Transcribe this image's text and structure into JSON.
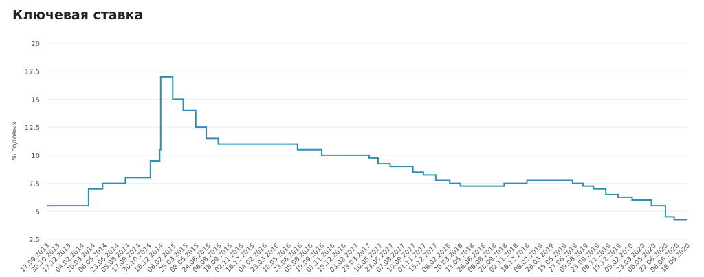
{
  "chart_data": {
    "type": "step-line",
    "title": "Ключевая ставка",
    "y_label": "% годовых",
    "x": [
      "17.09.2013",
      "03.03.2014",
      "28.04.2014",
      "28.07.2014",
      "05.11.2014",
      "12.12.2014",
      "16.12.2014",
      "02.02.2015",
      "16.03.2015",
      "05.05.2015",
      "16.06.2015",
      "03.08.2015",
      "14.06.2016",
      "19.09.2016",
      "27.03.2017",
      "02.05.2017",
      "19.06.2017",
      "18.09.2017",
      "30.10.2017",
      "18.12.2017",
      "12.02.2018",
      "26.03.2018",
      "17.09.2018",
      "17.12.2018",
      "17.06.2019",
      "29.07.2019",
      "09.09.2019",
      "28.10.2019",
      "16.12.2019",
      "10.02.2020",
      "27.04.2020",
      "22.06.2020",
      "27.07.2020",
      "18.09.2020"
    ],
    "values": [
      5.5,
      7,
      7.5,
      8,
      9.5,
      10.5,
      17,
      15,
      14,
      12.5,
      11.5,
      11,
      10.5,
      10,
      9.75,
      9.25,
      9,
      8.5,
      8.25,
      7.75,
      7.5,
      7.25,
      7.5,
      7.75,
      7.5,
      7.25,
      7,
      6.5,
      6.25,
      6,
      5.5,
      4.5,
      4.25,
      4.25
    ],
    "color": "#2b8fb3",
    "xlim": [
      "17.09.2013",
      "18.09.2020"
    ],
    "xticks": [
      "17.09.2013",
      "30.10.2013",
      "13.12.2013",
      "04.02.2014",
      "20.03.2014",
      "06.05.2014",
      "23.06.2014",
      "05.08.2014",
      "17.09.2014",
      "30.10.2014",
      "16.12.2014",
      "06.02.2015",
      "25.03.2015",
      "08.05.2015",
      "24.06.2015",
      "06.08.2015",
      "18.09.2015",
      "02.11.2015",
      "16.12.2015",
      "04.02.2016",
      "23.03.2016",
      "10.05.2016",
      "23.06.2016",
      "05.08.2016",
      "19.09.2016",
      "01.11.2016",
      "15.12.2016",
      "03.02.2017",
      "23.03.2017",
      "10.05.2017",
      "23.06.2017",
      "07.08.2017",
      "19.09.2017",
      "01.11.2017",
      "15.12.2017",
      "06.02.2018",
      "26.03.2018",
      "11.05.2018",
      "26.06.2018",
      "08.08.2018",
      "20.09.2018",
      "02.11.2018",
      "18.12.2018",
      "08.02.2019",
      "26.03.2019",
      "15.05.2019",
      "27.06.2019",
      "09.08.2019",
      "23.09.2019",
      "06.11.2019",
      "19.12.2019",
      "05.02.2020",
      "23.03.2020",
      "06.05.2020",
      "22.06.2020",
      "06.08.2020",
      "18.09.2020"
    ],
    "ylim": [
      2.5,
      20
    ],
    "yticks": [
      2.5,
      5,
      7.5,
      10,
      12.5,
      15,
      17.5,
      20
    ],
    "grid": true
  }
}
